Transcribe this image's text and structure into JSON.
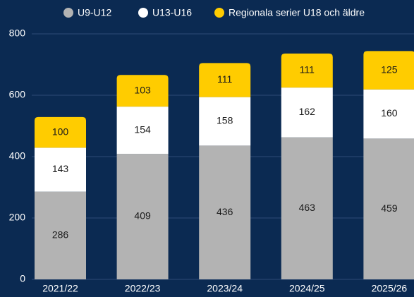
{
  "chart_data": {
    "type": "stacked_bar",
    "categories": [
      "2021/22",
      "2022/23",
      "2023/24",
      "2024/25",
      "2025/26"
    ],
    "series": [
      {
        "name": "U9-U12",
        "color": "#b3b3b3",
        "values": [
          286,
          409,
          436,
          463,
          459
        ]
      },
      {
        "name": "U13-U16",
        "color": "#ffffff",
        "values": [
          143,
          154,
          158,
          162,
          160
        ]
      },
      {
        "name": "Regionala serier U18 och äldre",
        "color": "#ffcc00",
        "values": [
          100,
          103,
          111,
          111,
          125
        ]
      }
    ],
    "ylim": [
      0,
      800
    ],
    "yticks": [
      0,
      200,
      400,
      600,
      800
    ],
    "grid": true,
    "legend": "top"
  }
}
